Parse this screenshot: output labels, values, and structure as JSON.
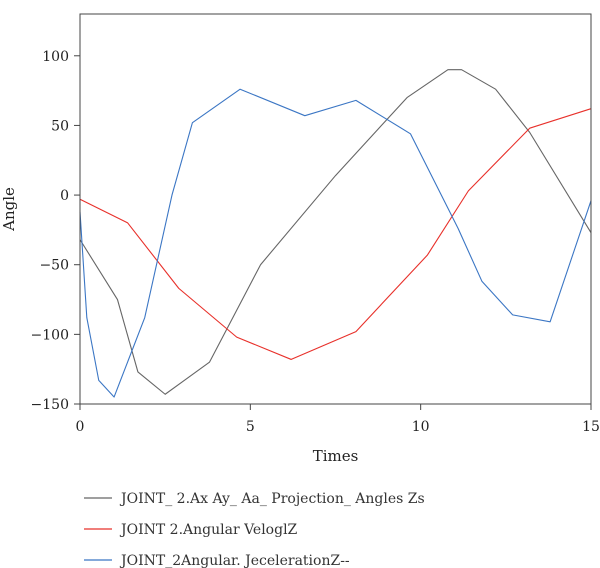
{
  "chart_data": {
    "type": "line",
    "title": "",
    "xlabel": "Times",
    "ylabel": "Angle",
    "xlim": [
      0,
      15
    ],
    "ylim": [
      -150,
      130
    ],
    "xticks": [
      0,
      5,
      10,
      15
    ],
    "yticks": [
      -150,
      -100,
      -50,
      0,
      50,
      100
    ],
    "xtick_labels": [
      "0",
      "5",
      "10",
      "15"
    ],
    "ytick_labels": [
      "−150",
      "−100",
      "−50",
      "0",
      "50",
      "100"
    ],
    "grid": false,
    "legend_position": "bottom",
    "series": [
      {
        "name": "JOINT_ 2.Ax Ay_ Aa_ Projection_ Angles Zs",
        "color": "#666666",
        "x": [
          0,
          1.1,
          1.7,
          2.5,
          3.8,
          5.3,
          7.5,
          9.6,
          10.8,
          11.2,
          12.2,
          13.2,
          15
        ],
        "y": [
          -32,
          -75,
          -127,
          -143,
          -120,
          -50,
          14,
          70,
          90,
          90,
          76,
          45,
          -27
        ]
      },
      {
        "name": "JOINT 2.Angular VeloglZ",
        "color": "#e8302a",
        "x": [
          0,
          1.4,
          2.9,
          4.6,
          6.2,
          8.1,
          10.2,
          11.4,
          13.2,
          15
        ],
        "y": [
          -3,
          -20,
          -67,
          -102,
          -118,
          -98,
          -43,
          3,
          48,
          62
        ]
      },
      {
        "name": "JOINT_2Angular. JecelerationZ--",
        "color": "#3b76c4",
        "x": [
          0,
          0.2,
          0.55,
          1.0,
          1.9,
          2.7,
          3.3,
          4.7,
          6.6,
          8.1,
          9.7,
          10.4,
          11.1,
          11.8,
          12.7,
          13.8,
          15
        ],
        "y": [
          -12,
          -88,
          -133,
          -145,
          -88,
          0,
          52,
          76,
          57,
          68,
          44,
          10,
          -24,
          -62,
          -86,
          -91,
          -4
        ]
      }
    ]
  }
}
